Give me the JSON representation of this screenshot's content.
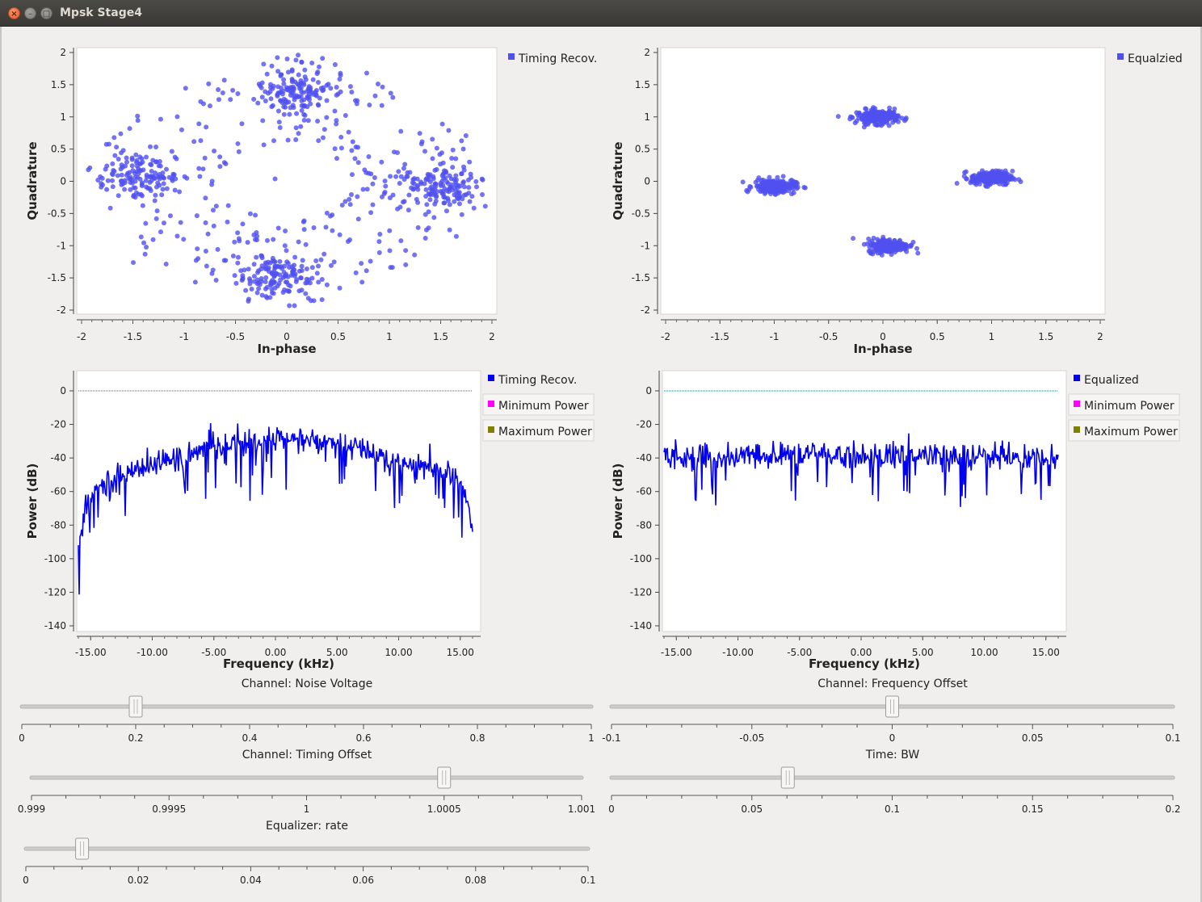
{
  "window": {
    "title": "Mpsk Stage4",
    "close_glyph": "×",
    "min_glyph": "–",
    "max_glyph": "□"
  },
  "colors": {
    "scatter_point": "#5050f0",
    "spectrum_line": "#0000ee",
    "min_power_legend": "#ff00ff",
    "max_power_legend": "#808000",
    "threshold_line": "#008080"
  },
  "plots": [
    {
      "id": "const-timing",
      "kind": "constellation",
      "xlabel": "In-phase",
      "ylabel": "Quadrature",
      "xticks": [
        "-2",
        "-1.5",
        "-1",
        "-0.5",
        "0",
        "0.5",
        "1",
        "1.5",
        "2"
      ],
      "yticks": [
        "2",
        "1.5",
        "1",
        "0.5",
        "0",
        "-0.5",
        "-1",
        "-1.5",
        "-2"
      ],
      "legend": [
        {
          "label": "Timing Recov.",
          "color": "#5050f0"
        }
      ]
    },
    {
      "id": "const-equalized",
      "kind": "constellation",
      "xlabel": "In-phase",
      "ylabel": "Quadrature",
      "xticks": [
        "-2",
        "-1.5",
        "-1",
        "-0.5",
        "0",
        "0.5",
        "1",
        "1.5",
        "2"
      ],
      "yticks": [
        "2",
        "1.5",
        "1",
        "0.5",
        "0",
        "-0.5",
        "-1",
        "-1.5",
        "-2"
      ],
      "legend": [
        {
          "label": "Equalzied",
          "color": "#5050f0"
        }
      ]
    },
    {
      "id": "psd-timing",
      "kind": "spectrum",
      "xlabel": "Frequency (kHz)",
      "ylabel": "Power (dB)",
      "xticks": [
        "-15.00",
        "-10.00",
        "-5.00",
        "0.00",
        "5.00",
        "10.00",
        "15.00"
      ],
      "yticks": [
        "0",
        "-20",
        "-40",
        "-60",
        "-80",
        "-100",
        "-120",
        "-140"
      ],
      "legend": [
        {
          "label": "Timing Recov.",
          "color": "#0000ee"
        },
        {
          "label": "Minimum Power",
          "color": "#ff00ff"
        },
        {
          "label": "Maximum Power",
          "color": "#808000"
        }
      ]
    },
    {
      "id": "psd-equalized",
      "kind": "spectrum",
      "xlabel": "Frequency (kHz)",
      "ylabel": "Power (dB)",
      "xticks": [
        "-15.00",
        "-10.00",
        "-5.00",
        "0.00",
        "5.00",
        "10.00",
        "15.00"
      ],
      "yticks": [
        "0",
        "-20",
        "-40",
        "-60",
        "-80",
        "-100",
        "-120",
        "-140"
      ],
      "legend": [
        {
          "label": "Equalized",
          "color": "#0000ee"
        },
        {
          "label": "Minimum Power",
          "color": "#ff00ff"
        },
        {
          "label": "Maximum Power",
          "color": "#808000"
        }
      ]
    }
  ],
  "sliders": [
    {
      "id": "noise-voltage",
      "label": "Channel: Noise Voltage",
      "min": 0,
      "max": 1,
      "value": 0.2,
      "ticks": [
        "0",
        "0.2",
        "0.4",
        "0.6",
        "0.8",
        "1"
      ]
    },
    {
      "id": "frequency-offset",
      "label": "Channel: Frequency Offset",
      "min": -0.1,
      "max": 0.1,
      "value": 0,
      "ticks": [
        "-0.1",
        "-0.05",
        "0",
        "0.05",
        "0.1"
      ]
    },
    {
      "id": "timing-offset",
      "label": "Channel: Timing Offset",
      "min": 0.999,
      "max": 1.001,
      "value": 1.0005,
      "ticks": [
        "0.999",
        "0.9995",
        "1",
        "1.0005",
        "1.001"
      ]
    },
    {
      "id": "time-bw",
      "label": "Time: BW",
      "min": 0,
      "max": 0.2,
      "value": 0.0628,
      "ticks": [
        "0",
        "0.05",
        "0.1",
        "0.15",
        "0.2"
      ]
    },
    {
      "id": "equalizer-rate",
      "label": "Equalizer: rate",
      "min": 0,
      "max": 0.1,
      "value": 0.01,
      "ticks": [
        "0",
        "0.02",
        "0.04",
        "0.06",
        "0.08",
        "0.1"
      ]
    }
  ],
  "chart_data": [
    {
      "type": "scatter",
      "title": "",
      "xlabel": "In-phase",
      "ylabel": "Quadrature",
      "xlim": [
        -2,
        2
      ],
      "ylim": [
        -2,
        2
      ],
      "legend": "top-right",
      "series": [
        {
          "name": "Timing Recov.",
          "clusters": [
            {
              "x": 0.1,
              "y": 1.45
            },
            {
              "x": -1.45,
              "y": 0.1
            },
            {
              "x": 1.5,
              "y": -0.1
            },
            {
              "x": -0.1,
              "y": -1.45
            }
          ]
        }
      ]
    },
    {
      "type": "scatter",
      "title": "",
      "xlabel": "In-phase",
      "ylabel": "Quadrature",
      "xlim": [
        -2,
        2
      ],
      "ylim": [
        -2,
        2
      ],
      "legend": "top-right",
      "series": [
        {
          "name": "Equalzied",
          "clusters": [
            {
              "x": -0.05,
              "y": 1.0
            },
            {
              "x": -1.0,
              "y": -0.08
            },
            {
              "x": 1.0,
              "y": 0.05
            },
            {
              "x": 0.05,
              "y": -1.0
            }
          ]
        }
      ]
    },
    {
      "type": "line",
      "title": "",
      "xlabel": "Frequency (kHz)",
      "ylabel": "Power (dB)",
      "xlim": [
        -16,
        16
      ],
      "ylim": [
        -140,
        0
      ],
      "legend": "right",
      "series": [
        {
          "name": "Timing Recov.",
          "x": [
            -16,
            -15,
            -14,
            -12,
            -10,
            -8,
            -6,
            -4,
            -2,
            0,
            2,
            4,
            6,
            8,
            10,
            12,
            14,
            15,
            15.5,
            16
          ],
          "y": [
            -88,
            -62,
            -56,
            -48,
            -44,
            -40,
            -36,
            -32,
            -30,
            -29,
            -29,
            -31,
            -33,
            -37,
            -42,
            -45,
            -48,
            -55,
            -65,
            -82
          ]
        },
        {
          "name": "Maximum Power",
          "threshold_db": 0
        }
      ]
    },
    {
      "type": "line",
      "title": "",
      "xlabel": "Frequency (kHz)",
      "ylabel": "Power (dB)",
      "xlim": [
        -16,
        16
      ],
      "ylim": [
        -140,
        0
      ],
      "legend": "right",
      "series": [
        {
          "name": "Equalized",
          "x": [
            -16,
            -12,
            -8,
            -4,
            0,
            4,
            8,
            12,
            16
          ],
          "y": [
            -38,
            -40,
            -39,
            -38,
            -39,
            -38,
            -39,
            -40,
            -40
          ]
        },
        {
          "name": "Maximum Power",
          "threshold_db": 0
        }
      ]
    }
  ]
}
